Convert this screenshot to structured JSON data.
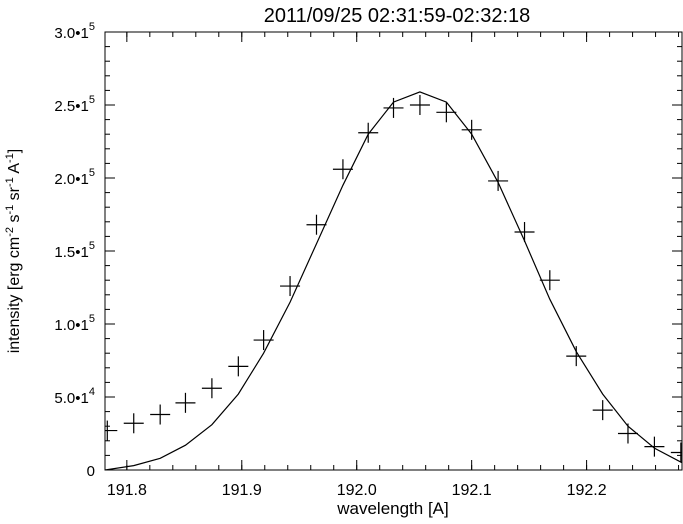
{
  "chart_data": {
    "type": "scatter",
    "title": "2011/09/25 02:31:59-02:32:18",
    "xlabel": "wavelength [A]",
    "ylabel": "intensity [erg cm-2 s-1 sr-1 A-1]",
    "xlim": [
      191.781,
      192.283
    ],
    "ylim": [
      0,
      300000
    ],
    "x_ticks": [
      191.8,
      191.9,
      192.0,
      192.1,
      192.2
    ],
    "x_tick_labels": [
      "191.8",
      "191.9",
      "192.0",
      "192.1",
      "192.2"
    ],
    "y_ticks": [
      0,
      50000,
      100000,
      150000,
      200000,
      250000,
      300000
    ],
    "y_tick_labels": [
      {
        "mantissa": "0",
        "exp": ""
      },
      {
        "mantissa": "5.0•1",
        "exp": "4"
      },
      {
        "mantissa": "1.0•1",
        "exp": "5"
      },
      {
        "mantissa": "1.5•1",
        "exp": "5"
      },
      {
        "mantissa": "2.0•1",
        "exp": "5"
      },
      {
        "mantissa": "2.5•1",
        "exp": "5"
      },
      {
        "mantissa": "3.0•1",
        "exp": "5"
      }
    ],
    "series": [
      {
        "marker": "plus",
        "x": [
          191.783,
          191.806,
          191.829,
          191.851,
          191.874,
          191.897,
          191.919,
          191.942,
          191.965,
          191.988,
          192.01,
          192.032,
          192.055,
          192.078,
          192.1,
          192.123,
          192.146,
          192.168,
          192.191,
          192.214,
          192.236,
          192.259,
          192.282
        ],
        "y": [
          27000,
          32000,
          38000,
          46000,
          56000,
          71000,
          89000,
          126000,
          168000,
          206000,
          231000,
          248000,
          250000,
          245000,
          233000,
          198000,
          163000,
          130000,
          78000,
          41000,
          25000,
          16000,
          12000
        ]
      },
      {
        "marker": "line",
        "x": [
          191.781,
          191.806,
          191.829,
          191.851,
          191.874,
          191.897,
          191.919,
          191.942,
          191.965,
          191.988,
          192.01,
          192.032,
          192.055,
          192.078,
          192.1,
          192.123,
          192.146,
          192.168,
          192.191,
          192.214,
          192.236,
          192.259,
          192.283
        ],
        "y": [
          0,
          3000,
          8000,
          17000,
          31000,
          52000,
          80000,
          115000,
          155000,
          195000,
          230000,
          252000,
          259000,
          252000,
          230000,
          197000,
          157000,
          117000,
          81000,
          52000,
          30000,
          15000,
          5000
        ]
      }
    ]
  }
}
